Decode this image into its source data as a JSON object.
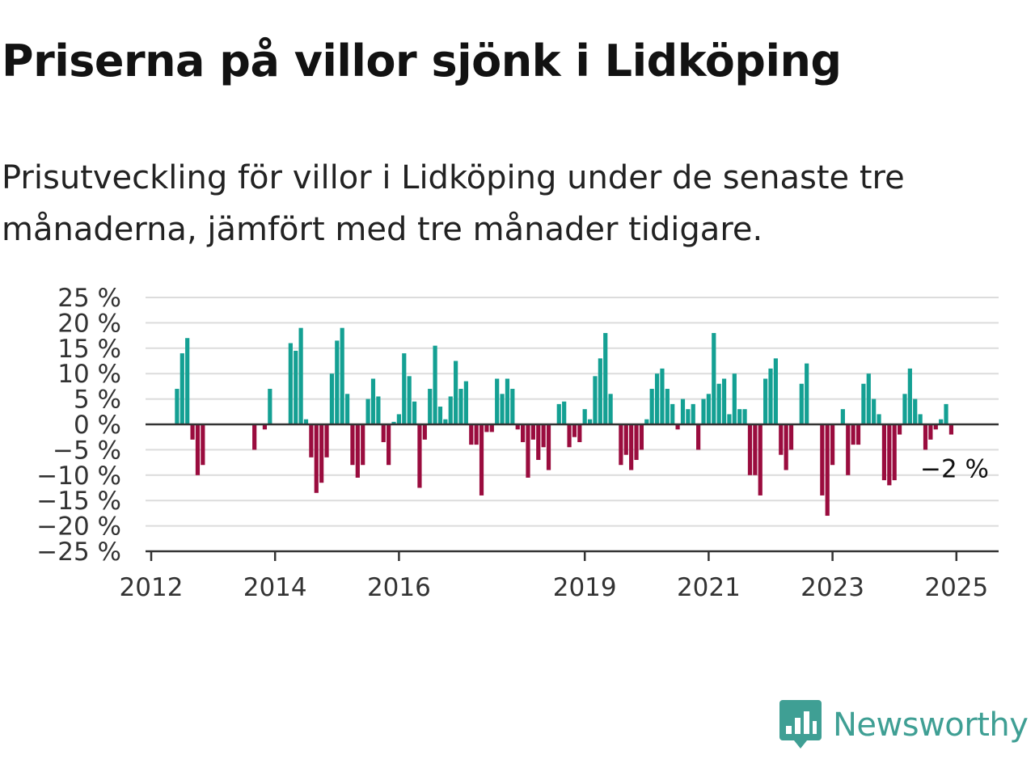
{
  "title": "Priserna på villor sjönk i Lidköping",
  "subtitle": "Prisutveckling för villor i Lidköping under de senaste tre månaderna, jämfört med tre månader tidigare.",
  "brand": {
    "name": "Newsworthy",
    "icon": "newsworthy-logo-icon",
    "color": "#3f9f94"
  },
  "chart_data": {
    "type": "bar",
    "y_ticks": [
      "25 %",
      "20 %",
      "15 %",
      "10 %",
      "5 %",
      "0 %",
      "−5 %",
      "−10 %",
      "−15 %",
      "−20 %",
      "−25 %"
    ],
    "ylim": [
      -25,
      25
    ],
    "x_ticks": [
      {
        "label": "2012",
        "x": "2012-01"
      },
      {
        "label": "2014",
        "x": "2014-01"
      },
      {
        "label": "2016",
        "x": "2016-01"
      },
      {
        "label": "2019",
        "x": "2019-01"
      },
      {
        "label": "2021",
        "x": "2021-01"
      },
      {
        "label": "2023",
        "x": "2023-01"
      },
      {
        "label": "2025",
        "x": "2025-01"
      }
    ],
    "colors": {
      "positive": "#14a093",
      "negative": "#9a0c3e",
      "grid": "#dcdcdc",
      "axis": "#333333"
    },
    "grid": true,
    "annotation": {
      "label": "−2 %",
      "x": "2025-01",
      "y": -2
    },
    "series": [
      {
        "values": [
          [
            "2012-06",
            7
          ],
          [
            "2012-07",
            14
          ],
          [
            "2012-08",
            17
          ],
          [
            "2012-09",
            -3
          ],
          [
            "2012-10",
            -10
          ],
          [
            "2012-11",
            -8
          ],
          [
            "2013-09",
            -5
          ],
          [
            "2013-11",
            -1
          ],
          [
            "2013-12",
            7
          ],
          [
            "2014-04",
            16
          ],
          [
            "2014-05",
            14.5
          ],
          [
            "2014-06",
            19
          ],
          [
            "2014-07",
            1
          ],
          [
            "2014-08",
            -6.5
          ],
          [
            "2014-09",
            -13.5
          ],
          [
            "2014-10",
            -11.5
          ],
          [
            "2014-11",
            -6.5
          ],
          [
            "2014-12",
            10
          ],
          [
            "2015-01",
            16.5
          ],
          [
            "2015-02",
            19
          ],
          [
            "2015-03",
            6
          ],
          [
            "2015-04",
            -8
          ],
          [
            "2015-05",
            -10.5
          ],
          [
            "2015-06",
            -8
          ],
          [
            "2015-07",
            5
          ],
          [
            "2015-08",
            9
          ],
          [
            "2015-09",
            5.5
          ],
          [
            "2015-10",
            -3.5
          ],
          [
            "2015-11",
            -8
          ],
          [
            "2015-12",
            0.5
          ],
          [
            "2016-01",
            2
          ],
          [
            "2016-02",
            14
          ],
          [
            "2016-03",
            9.5
          ],
          [
            "2016-04",
            4.5
          ],
          [
            "2016-05",
            -12.5
          ],
          [
            "2016-06",
            -3
          ],
          [
            "2016-07",
            7
          ],
          [
            "2016-08",
            15.5
          ],
          [
            "2016-09",
            3.5
          ],
          [
            "2016-10",
            1
          ],
          [
            "2016-11",
            5.5
          ],
          [
            "2016-12",
            12.5
          ],
          [
            "2017-01",
            7
          ],
          [
            "2017-02",
            8.5
          ],
          [
            "2017-03",
            -4
          ],
          [
            "2017-04",
            -4
          ],
          [
            "2017-05",
            -14
          ],
          [
            "2017-06",
            -1.5
          ],
          [
            "2017-07",
            -1.5
          ],
          [
            "2017-08",
            9
          ],
          [
            "2017-09",
            6
          ],
          [
            "2017-10",
            9
          ],
          [
            "2017-11",
            7
          ],
          [
            "2017-12",
            -1
          ],
          [
            "2018-01",
            -3.5
          ],
          [
            "2018-02",
            -10.5
          ],
          [
            "2018-03",
            -3
          ],
          [
            "2018-04",
            -7
          ],
          [
            "2018-05",
            -4.5
          ],
          [
            "2018-06",
            -9
          ],
          [
            "2018-08",
            4
          ],
          [
            "2018-09",
            4.5
          ],
          [
            "2018-10",
            -4.5
          ],
          [
            "2018-11",
            -2.5
          ],
          [
            "2018-12",
            -3.5
          ],
          [
            "2019-01",
            3
          ],
          [
            "2019-02",
            1
          ],
          [
            "2019-03",
            9.5
          ],
          [
            "2019-04",
            13
          ],
          [
            "2019-05",
            18
          ],
          [
            "2019-06",
            6
          ],
          [
            "2019-08",
            -8
          ],
          [
            "2019-09",
            -6
          ],
          [
            "2019-10",
            -9
          ],
          [
            "2019-11",
            -7
          ],
          [
            "2019-12",
            -5
          ],
          [
            "2020-01",
            1
          ],
          [
            "2020-02",
            7
          ],
          [
            "2020-03",
            10
          ],
          [
            "2020-04",
            11
          ],
          [
            "2020-05",
            7
          ],
          [
            "2020-06",
            4
          ],
          [
            "2020-07",
            -1
          ],
          [
            "2020-08",
            5
          ],
          [
            "2020-09",
            3
          ],
          [
            "2020-10",
            4
          ],
          [
            "2020-11",
            -5
          ],
          [
            "2020-12",
            5
          ],
          [
            "2021-01",
            6
          ],
          [
            "2021-02",
            18
          ],
          [
            "2021-03",
            8
          ],
          [
            "2021-04",
            9
          ],
          [
            "2021-05",
            2
          ],
          [
            "2021-06",
            10
          ],
          [
            "2021-07",
            3
          ],
          [
            "2021-08",
            3
          ],
          [
            "2021-09",
            -10
          ],
          [
            "2021-10",
            -10
          ],
          [
            "2021-11",
            -14
          ],
          [
            "2021-12",
            9
          ],
          [
            "2022-01",
            11
          ],
          [
            "2022-02",
            13
          ],
          [
            "2022-03",
            -6
          ],
          [
            "2022-04",
            -9
          ],
          [
            "2022-05",
            -5
          ],
          [
            "2022-07",
            8
          ],
          [
            "2022-08",
            12
          ],
          [
            "2022-11",
            -14
          ],
          [
            "2022-12",
            -18
          ],
          [
            "2023-01",
            -8
          ],
          [
            "2023-03",
            3
          ],
          [
            "2023-04",
            -10
          ],
          [
            "2023-05",
            -4
          ],
          [
            "2023-06",
            -4
          ],
          [
            "2023-07",
            8
          ],
          [
            "2023-08",
            10
          ],
          [
            "2023-09",
            5
          ],
          [
            "2023-10",
            2
          ],
          [
            "2023-11",
            -11
          ],
          [
            "2023-12",
            -12
          ],
          [
            "2024-01",
            -11
          ],
          [
            "2024-02",
            -2
          ],
          [
            "2024-03",
            6
          ],
          [
            "2024-04",
            11
          ],
          [
            "2024-05",
            5
          ],
          [
            "2024-06",
            2
          ],
          [
            "2024-07",
            -5
          ],
          [
            "2024-08",
            -3
          ],
          [
            "2024-09",
            -1
          ],
          [
            "2024-10",
            1
          ],
          [
            "2024-11",
            4
          ],
          [
            "2024-12",
            -2
          ]
        ]
      }
    ]
  }
}
